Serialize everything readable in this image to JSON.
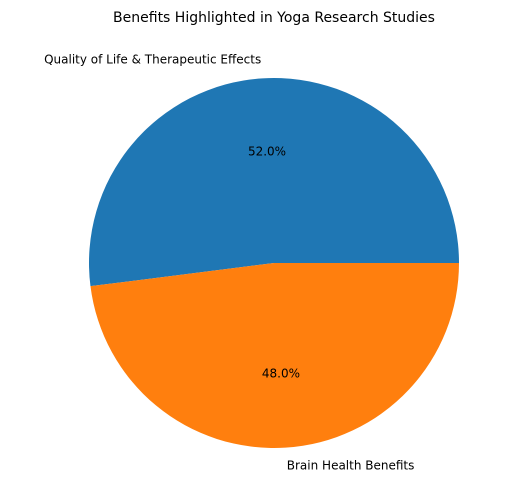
{
  "chart_data": {
    "type": "pie",
    "title": "Benefits Highlighted in Yoga Research Studies",
    "categories": [
      "Quality of Life & Therapeutic Effects",
      "Brain Health Benefits"
    ],
    "values": [
      52,
      48
    ],
    "value_labels": [
      "52.0%",
      "48.0%"
    ],
    "colors": [
      "#1f77b4",
      "#ff7f0e"
    ]
  }
}
